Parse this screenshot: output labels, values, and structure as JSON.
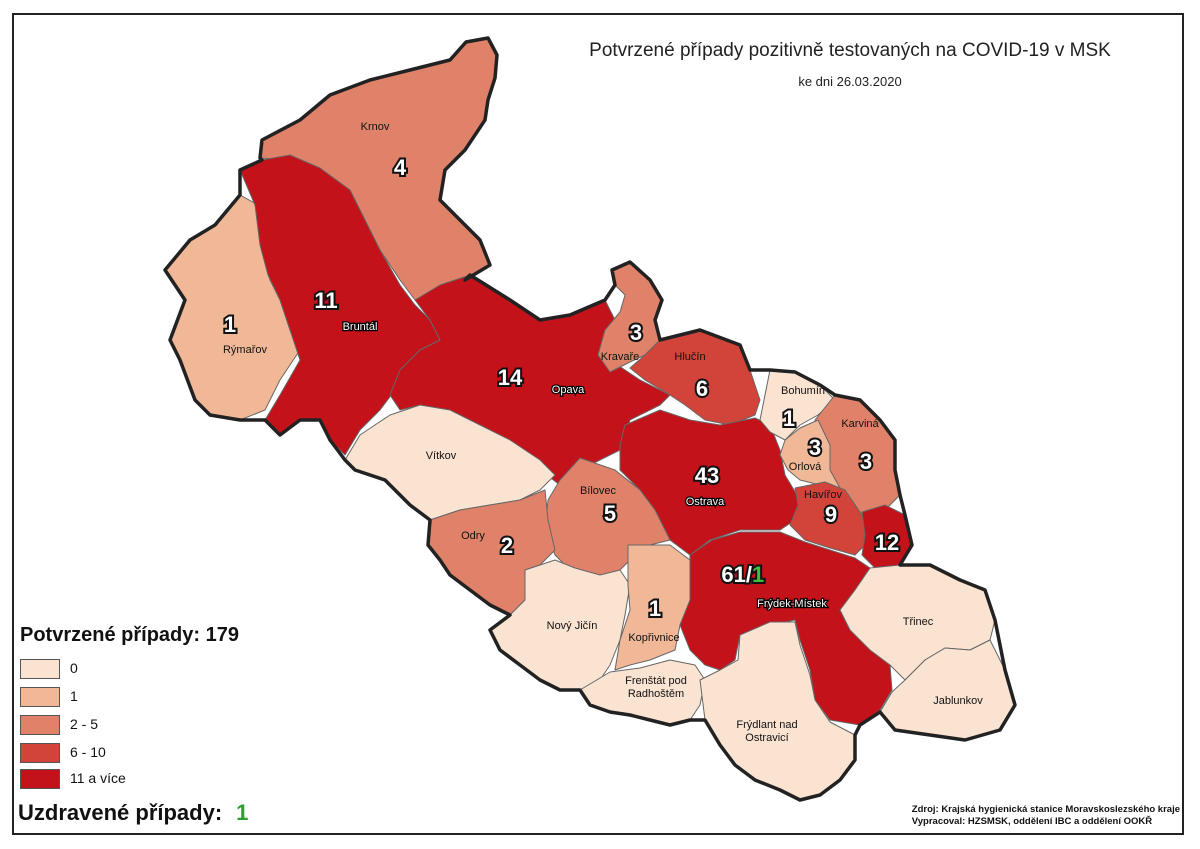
{
  "title": "Potvrzené případy pozitivně testovaných na COVID-19 v MSK",
  "subtitle": "ke dni 26.03.2020",
  "legend": {
    "title": "Potvrzené případy: 179",
    "items": [
      {
        "label": "0",
        "color": "#fbe3d2"
      },
      {
        "label": "1",
        "color": "#f1b898"
      },
      {
        "label": "2 - 5",
        "color": "#e0826a"
      },
      {
        "label": "6 - 10",
        "color": "#d2443a"
      },
      {
        "label": "11 a více",
        "color": "#c4121a"
      }
    ]
  },
  "recovered": {
    "label": "Uzdravené případy:",
    "value": "1",
    "value_color": "#2ca02c"
  },
  "source": {
    "line1": "Zdroj: Krajská hygienická stanice Moravskoslezského kraje",
    "line2": "Vypracoval: HZSMSK, oddělení IBC a oddělení OOKŘ"
  },
  "regions": {
    "krnov": {
      "name": "Krnov",
      "count": "4"
    },
    "rymarov": {
      "name": "Rýmařov",
      "count": "1"
    },
    "bruntal": {
      "name": "Bruntál",
      "count": "11"
    },
    "opava": {
      "name": "Opava",
      "count": "14"
    },
    "kravare": {
      "name": "Kravaře",
      "count": "3"
    },
    "hlucin": {
      "name": "Hlučín",
      "count": "6"
    },
    "bohumin": {
      "name": "Bohumín",
      "count": "1"
    },
    "karvina": {
      "name": "Karviná",
      "count": "3"
    },
    "orlova": {
      "name": "Orlová",
      "count": "3"
    },
    "havirov": {
      "name": "Havířov",
      "count": "9"
    },
    "ostrava": {
      "name": "Ostrava",
      "count": "43"
    },
    "vitkov": {
      "name": "Vítkov",
      "count": ""
    },
    "bilovec": {
      "name": "Bílovec",
      "count": "5"
    },
    "odry": {
      "name": "Odry",
      "count": "2"
    },
    "trinec_east": {
      "name": "",
      "count": "12"
    },
    "frydek": {
      "name": "Frýdek-Místek",
      "count": "61/",
      "count_recovered": "1"
    },
    "novy_jicin": {
      "name": "Nový Jičín",
      "count": ""
    },
    "koprivnice": {
      "name": "Kopřivnice",
      "count": "1"
    },
    "frenstat": {
      "name_line1": "Frenštát pod",
      "name_line2": "Radhoštěm"
    },
    "frydlant": {
      "name_line1": "Frýdlant nad",
      "name_line2": "Ostravicí"
    },
    "trinec": {
      "name": "Třinec"
    },
    "jablunkov": {
      "name": "Jablunkov"
    }
  }
}
